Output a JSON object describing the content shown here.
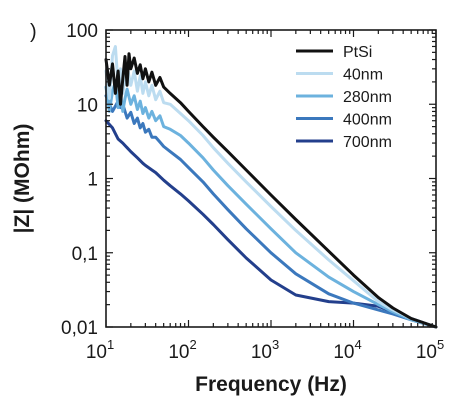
{
  "panel_mark": ")",
  "chart_data": {
    "type": "line",
    "title": "",
    "xlabel": "Frequency (Hz)",
    "ylabel": "|Z| (MOhm)",
    "x_scale": "log",
    "y_scale": "log",
    "xlim": [
      10,
      100000
    ],
    "ylim": [
      0.01,
      100
    ],
    "x_ticks": [
      {
        "value": 10,
        "base": "10",
        "exp": "1"
      },
      {
        "value": 100,
        "base": "10",
        "exp": "2"
      },
      {
        "value": 1000,
        "base": "10",
        "exp": "3"
      },
      {
        "value": 10000,
        "base": "10",
        "exp": "4"
      },
      {
        "value": 100000,
        "base": "10",
        "exp": "5"
      }
    ],
    "y_ticks": [
      {
        "value": 100,
        "label": "100"
      },
      {
        "value": 10,
        "label": "10"
      },
      {
        "value": 1,
        "label": "1"
      },
      {
        "value": 0.1,
        "label": "0,1"
      },
      {
        "value": 0.01,
        "label": "0,01"
      }
    ],
    "grid": false,
    "legend_position": "top-right",
    "series": [
      {
        "name": "PtSi",
        "color": "#111111",
        "points": [
          [
            10,
            40
          ],
          [
            11,
            18
          ],
          [
            12,
            35
          ],
          [
            13,
            14
          ],
          [
            14,
            28
          ],
          [
            15,
            10
          ],
          [
            16,
            22
          ],
          [
            17,
            44
          ],
          [
            18,
            18
          ],
          [
            19,
            48
          ],
          [
            20,
            30
          ],
          [
            22,
            42
          ],
          [
            24,
            26
          ],
          [
            26,
            34
          ],
          [
            28,
            22
          ],
          [
            30,
            30
          ],
          [
            33,
            20
          ],
          [
            36,
            27
          ],
          [
            40,
            18
          ],
          [
            45,
            23
          ],
          [
            50,
            17
          ],
          [
            60,
            14
          ],
          [
            80,
            10.5
          ],
          [
            100,
            8
          ],
          [
            150,
            5
          ],
          [
            200,
            3.6
          ],
          [
            300,
            2.3
          ],
          [
            500,
            1.3
          ],
          [
            1000,
            0.6
          ],
          [
            2000,
            0.28
          ],
          [
            5000,
            0.105
          ],
          [
            10000,
            0.05
          ],
          [
            20000,
            0.025
          ],
          [
            30000,
            0.018
          ],
          [
            50000,
            0.013
          ],
          [
            100000,
            0.01
          ]
        ]
      },
      {
        "name": "40nm",
        "color": "#bcdcf0",
        "points": [
          [
            10,
            28
          ],
          [
            11,
            12
          ],
          [
            12,
            45
          ],
          [
            13,
            60
          ],
          [
            14,
            18
          ],
          [
            15,
            30
          ],
          [
            16,
            14
          ],
          [
            17,
            24
          ],
          [
            18,
            32
          ],
          [
            20,
            18
          ],
          [
            22,
            28
          ],
          [
            24,
            15
          ],
          [
            26,
            24
          ],
          [
            28,
            14
          ],
          [
            30,
            20
          ],
          [
            33,
            13
          ],
          [
            36,
            18
          ],
          [
            40,
            11.5
          ],
          [
            45,
            15
          ],
          [
            50,
            10.5
          ],
          [
            60,
            10
          ],
          [
            80,
            7.5
          ],
          [
            100,
            6
          ],
          [
            150,
            3.8
          ],
          [
            200,
            2.6
          ],
          [
            300,
            1.6
          ],
          [
            500,
            0.9
          ],
          [
            1000,
            0.42
          ],
          [
            2000,
            0.2
          ],
          [
            5000,
            0.08
          ],
          [
            10000,
            0.042
          ],
          [
            20000,
            0.022
          ],
          [
            30000,
            0.017
          ],
          [
            50000,
            0.013
          ],
          [
            100000,
            0.01
          ]
        ]
      },
      {
        "name": "280nm",
        "color": "#6cb2de",
        "points": [
          [
            10,
            17
          ],
          [
            11,
            8
          ],
          [
            12,
            15
          ],
          [
            13,
            20
          ],
          [
            14,
            9
          ],
          [
            15,
            14
          ],
          [
            16,
            8
          ],
          [
            17,
            12
          ],
          [
            18,
            16
          ],
          [
            20,
            10
          ],
          [
            22,
            13
          ],
          [
            24,
            8.5
          ],
          [
            26,
            11
          ],
          [
            28,
            7.5
          ],
          [
            30,
            9
          ],
          [
            33,
            6.5
          ],
          [
            36,
            8
          ],
          [
            40,
            6
          ],
          [
            45,
            7
          ],
          [
            50,
            5
          ],
          [
            60,
            4.6
          ],
          [
            80,
            3.8
          ],
          [
            100,
            3
          ],
          [
            150,
            1.9
          ],
          [
            200,
            1.3
          ],
          [
            300,
            0.8
          ],
          [
            500,
            0.45
          ],
          [
            1000,
            0.21
          ],
          [
            2000,
            0.1
          ],
          [
            5000,
            0.047
          ],
          [
            10000,
            0.03
          ],
          [
            20000,
            0.02
          ],
          [
            30000,
            0.016
          ],
          [
            50000,
            0.0125
          ],
          [
            100000,
            0.01
          ]
        ]
      },
      {
        "name": "400nm",
        "color": "#3b78bd",
        "points": [
          [
            10,
            13
          ],
          [
            12,
            8
          ],
          [
            14,
            11
          ],
          [
            15,
            9
          ],
          [
            16,
            10
          ],
          [
            18,
            6.5
          ],
          [
            20,
            7.8
          ],
          [
            22,
            5.5
          ],
          [
            24,
            6.5
          ],
          [
            26,
            4.8
          ],
          [
            28,
            5.5
          ],
          [
            30,
            4.2
          ],
          [
            33,
            4.6
          ],
          [
            36,
            3.6
          ],
          [
            40,
            3.6
          ],
          [
            45,
            3.1
          ],
          [
            50,
            2.7
          ],
          [
            60,
            2.3
          ],
          [
            80,
            1.8
          ],
          [
            100,
            1.4
          ],
          [
            150,
            0.9
          ],
          [
            200,
            0.62
          ],
          [
            300,
            0.38
          ],
          [
            500,
            0.21
          ],
          [
            1000,
            0.1
          ],
          [
            2000,
            0.052
          ],
          [
            5000,
            0.028
          ],
          [
            10000,
            0.021
          ],
          [
            20000,
            0.017
          ],
          [
            30000,
            0.015
          ],
          [
            50000,
            0.0125
          ],
          [
            100000,
            0.01
          ]
        ]
      },
      {
        "name": "700nm",
        "color": "#233f8c",
        "points": [
          [
            10,
            6
          ],
          [
            12,
            4.8
          ],
          [
            14,
            3.4
          ],
          [
            16,
            3
          ],
          [
            18,
            2.6
          ],
          [
            20,
            2.3
          ],
          [
            24,
            1.9
          ],
          [
            28,
            1.6
          ],
          [
            30,
            1.5
          ],
          [
            36,
            1.3
          ],
          [
            40,
            1.2
          ],
          [
            50,
            0.95
          ],
          [
            60,
            0.8
          ],
          [
            80,
            0.62
          ],
          [
            100,
            0.5
          ],
          [
            150,
            0.33
          ],
          [
            200,
            0.24
          ],
          [
            300,
            0.15
          ],
          [
            500,
            0.085
          ],
          [
            1000,
            0.043
          ],
          [
            2000,
            0.027
          ],
          [
            5000,
            0.022
          ],
          [
            10000,
            0.021
          ],
          [
            20000,
            0.019
          ],
          [
            30000,
            0.016
          ],
          [
            50000,
            0.013
          ],
          [
            100000,
            0.01
          ]
        ]
      }
    ]
  }
}
